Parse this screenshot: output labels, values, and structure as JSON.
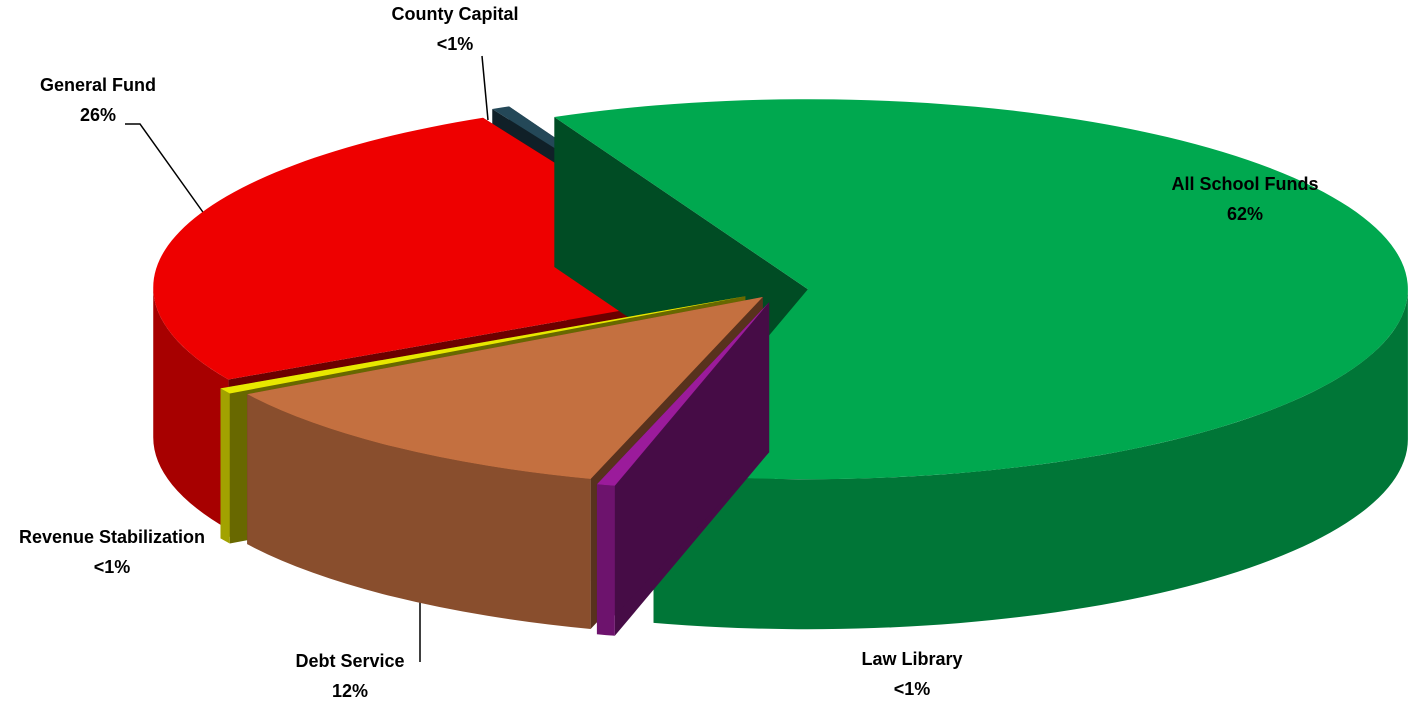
{
  "chart_data": {
    "type": "pie",
    "categories": [
      "All School Funds",
      "Law Library",
      "Debt Service",
      "Revenue Stabilization",
      "General Fund",
      "County Capital"
    ],
    "values": [
      62,
      0.5,
      12,
      0.5,
      26,
      0.5
    ],
    "value_labels": [
      "62%",
      "<1%",
      "12%",
      "<1%",
      "26%",
      "<1%"
    ],
    "colors": [
      "#00a84f",
      "#9b1b9b",
      "#c47040",
      "#e8e800",
      "#ee0000",
      "#244858"
    ]
  }
}
